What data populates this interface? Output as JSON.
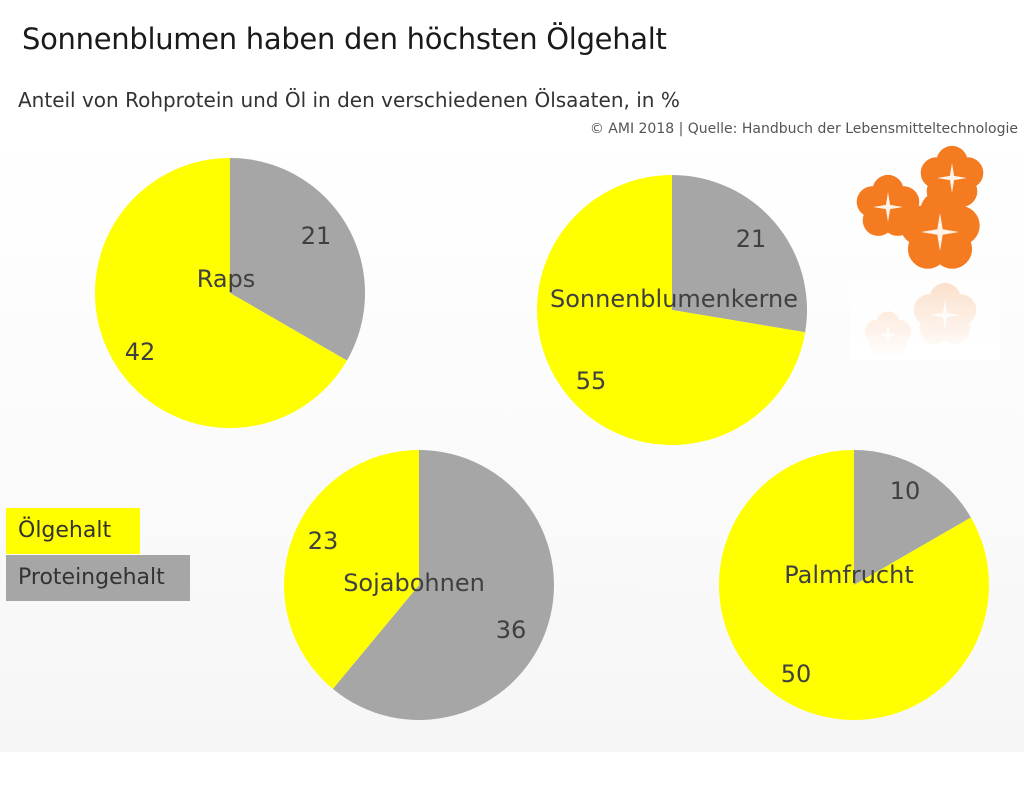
{
  "header": {
    "title": "Sonnenblumen haben den höchsten Ölgehalt",
    "subtitle": "Anteil von Rohprotein und Öl in den verschiedenen Ölsaaten, in %",
    "source": "© AMI 2018 | Quelle: Handbuch der Lebensmitteltechnologie"
  },
  "legend": {
    "oil": "Ölgehalt",
    "protein": "Proteingehalt"
  },
  "colors": {
    "oil": "#ffff00",
    "protein": "#a6a6a6",
    "flower": "#f47b20"
  },
  "decoration": {
    "icon": "orange-flowers-icon"
  },
  "chart_data": {
    "type": "pie",
    "unit": "%",
    "charts": [
      {
        "name": "Raps",
        "protein": 21,
        "oil": 42
      },
      {
        "name": "Sonnenblumenkerne",
        "protein": 21,
        "oil": 55
      },
      {
        "name": "Sojabohnen",
        "protein": 36,
        "oil": 23
      },
      {
        "name": "Palmfrucht",
        "protein": 10,
        "oil": 50
      }
    ],
    "series": [
      {
        "name": "Ölgehalt",
        "color": "#ffff00"
      },
      {
        "name": "Proteingehalt",
        "color": "#a6a6a6"
      }
    ],
    "legend_position": "left"
  }
}
